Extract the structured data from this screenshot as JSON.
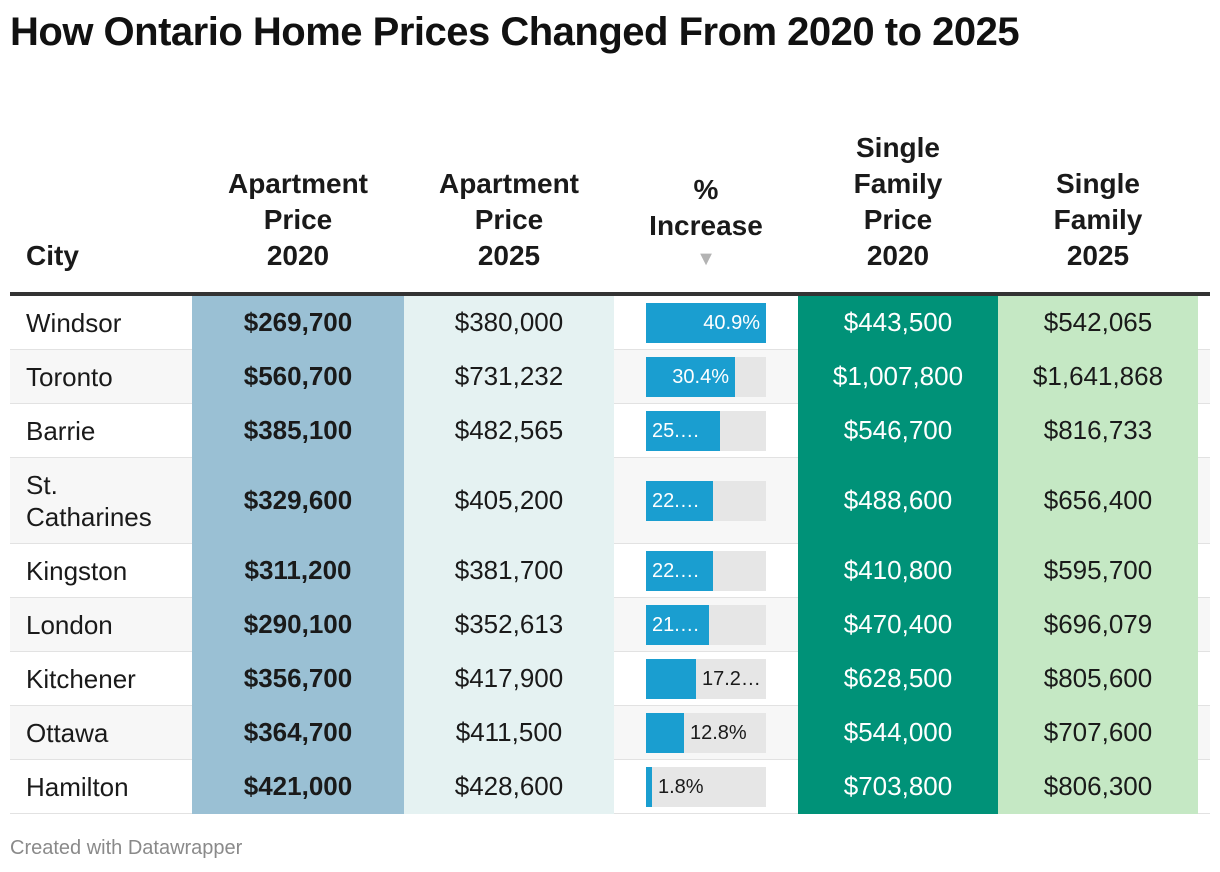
{
  "title": "How Ontario Home Prices Changed From 2020 to 2025",
  "headers": {
    "city": "City",
    "apt2020": "Apartment Price 2020",
    "apt2025": "Apartment Price 2025",
    "pct": "% Increase",
    "sort_icon": "▼",
    "sf2020": "Single Family Price 2020",
    "sf2025": "Single Family 2025"
  },
  "credit": "Created with Datawrapper",
  "colors": {
    "apt2020_bg": "#9ac0d4",
    "apt2025_bg": "#e5f2f2",
    "bar": "#1a9ed0",
    "sf2020_bg": "#009278",
    "sf2025_bg": "#c5e8c4"
  },
  "chart_data": {
    "type": "table",
    "columns": [
      "City",
      "Apartment Price 2020",
      "Apartment Price 2025",
      "% Increase",
      "Single Family Price 2020",
      "Single Family 2025"
    ],
    "sort": {
      "column": "% Increase",
      "order": "descending"
    },
    "bar_max": 40.9,
    "rows": [
      {
        "city": "Windsor",
        "apt2020": "$269,700",
        "apt2025": "$380,000",
        "pct": 40.9,
        "pct_label": "40.9%",
        "sf2020": "$443,500",
        "sf2025": "$542,065"
      },
      {
        "city": "Toronto",
        "apt2020": "$560,700",
        "apt2025": "$731,232",
        "pct": 30.4,
        "pct_label": "30.4%",
        "sf2020": "$1,007,800",
        "sf2025": "$1,641,868"
      },
      {
        "city": "Barrie",
        "apt2020": "$385,100",
        "apt2025": "$482,565",
        "pct": 25.3,
        "pct_label": "25.…",
        "sf2020": "$546,700",
        "sf2025": "$816,733"
      },
      {
        "city": "St. Catharines",
        "apt2020": "$329,600",
        "apt2025": "$405,200",
        "pct": 22.9,
        "pct_label": "22.…",
        "sf2020": "$488,600",
        "sf2025": "$656,400"
      },
      {
        "city": "Kingston",
        "apt2020": "$311,200",
        "apt2025": "$381,700",
        "pct": 22.7,
        "pct_label": "22.…",
        "sf2020": "$410,800",
        "sf2025": "$595,700"
      },
      {
        "city": "London",
        "apt2020": "$290,100",
        "apt2025": "$352,613",
        "pct": 21.5,
        "pct_label": "21.…",
        "sf2020": "$470,400",
        "sf2025": "$696,079"
      },
      {
        "city": "Kitchener",
        "apt2020": "$356,700",
        "apt2025": "$417,900",
        "pct": 17.2,
        "pct_label": "17.2…",
        "sf2020": "$628,500",
        "sf2025": "$805,600"
      },
      {
        "city": "Ottawa",
        "apt2020": "$364,700",
        "apt2025": "$411,500",
        "pct": 12.8,
        "pct_label": "12.8%",
        "sf2020": "$544,000",
        "sf2025": "$707,600"
      },
      {
        "city": "Hamilton",
        "apt2020": "$421,000",
        "apt2025": "$428,600",
        "pct": 1.8,
        "pct_label": "1.8%",
        "sf2020": "$703,800",
        "sf2025": "$806,300"
      }
    ]
  }
}
